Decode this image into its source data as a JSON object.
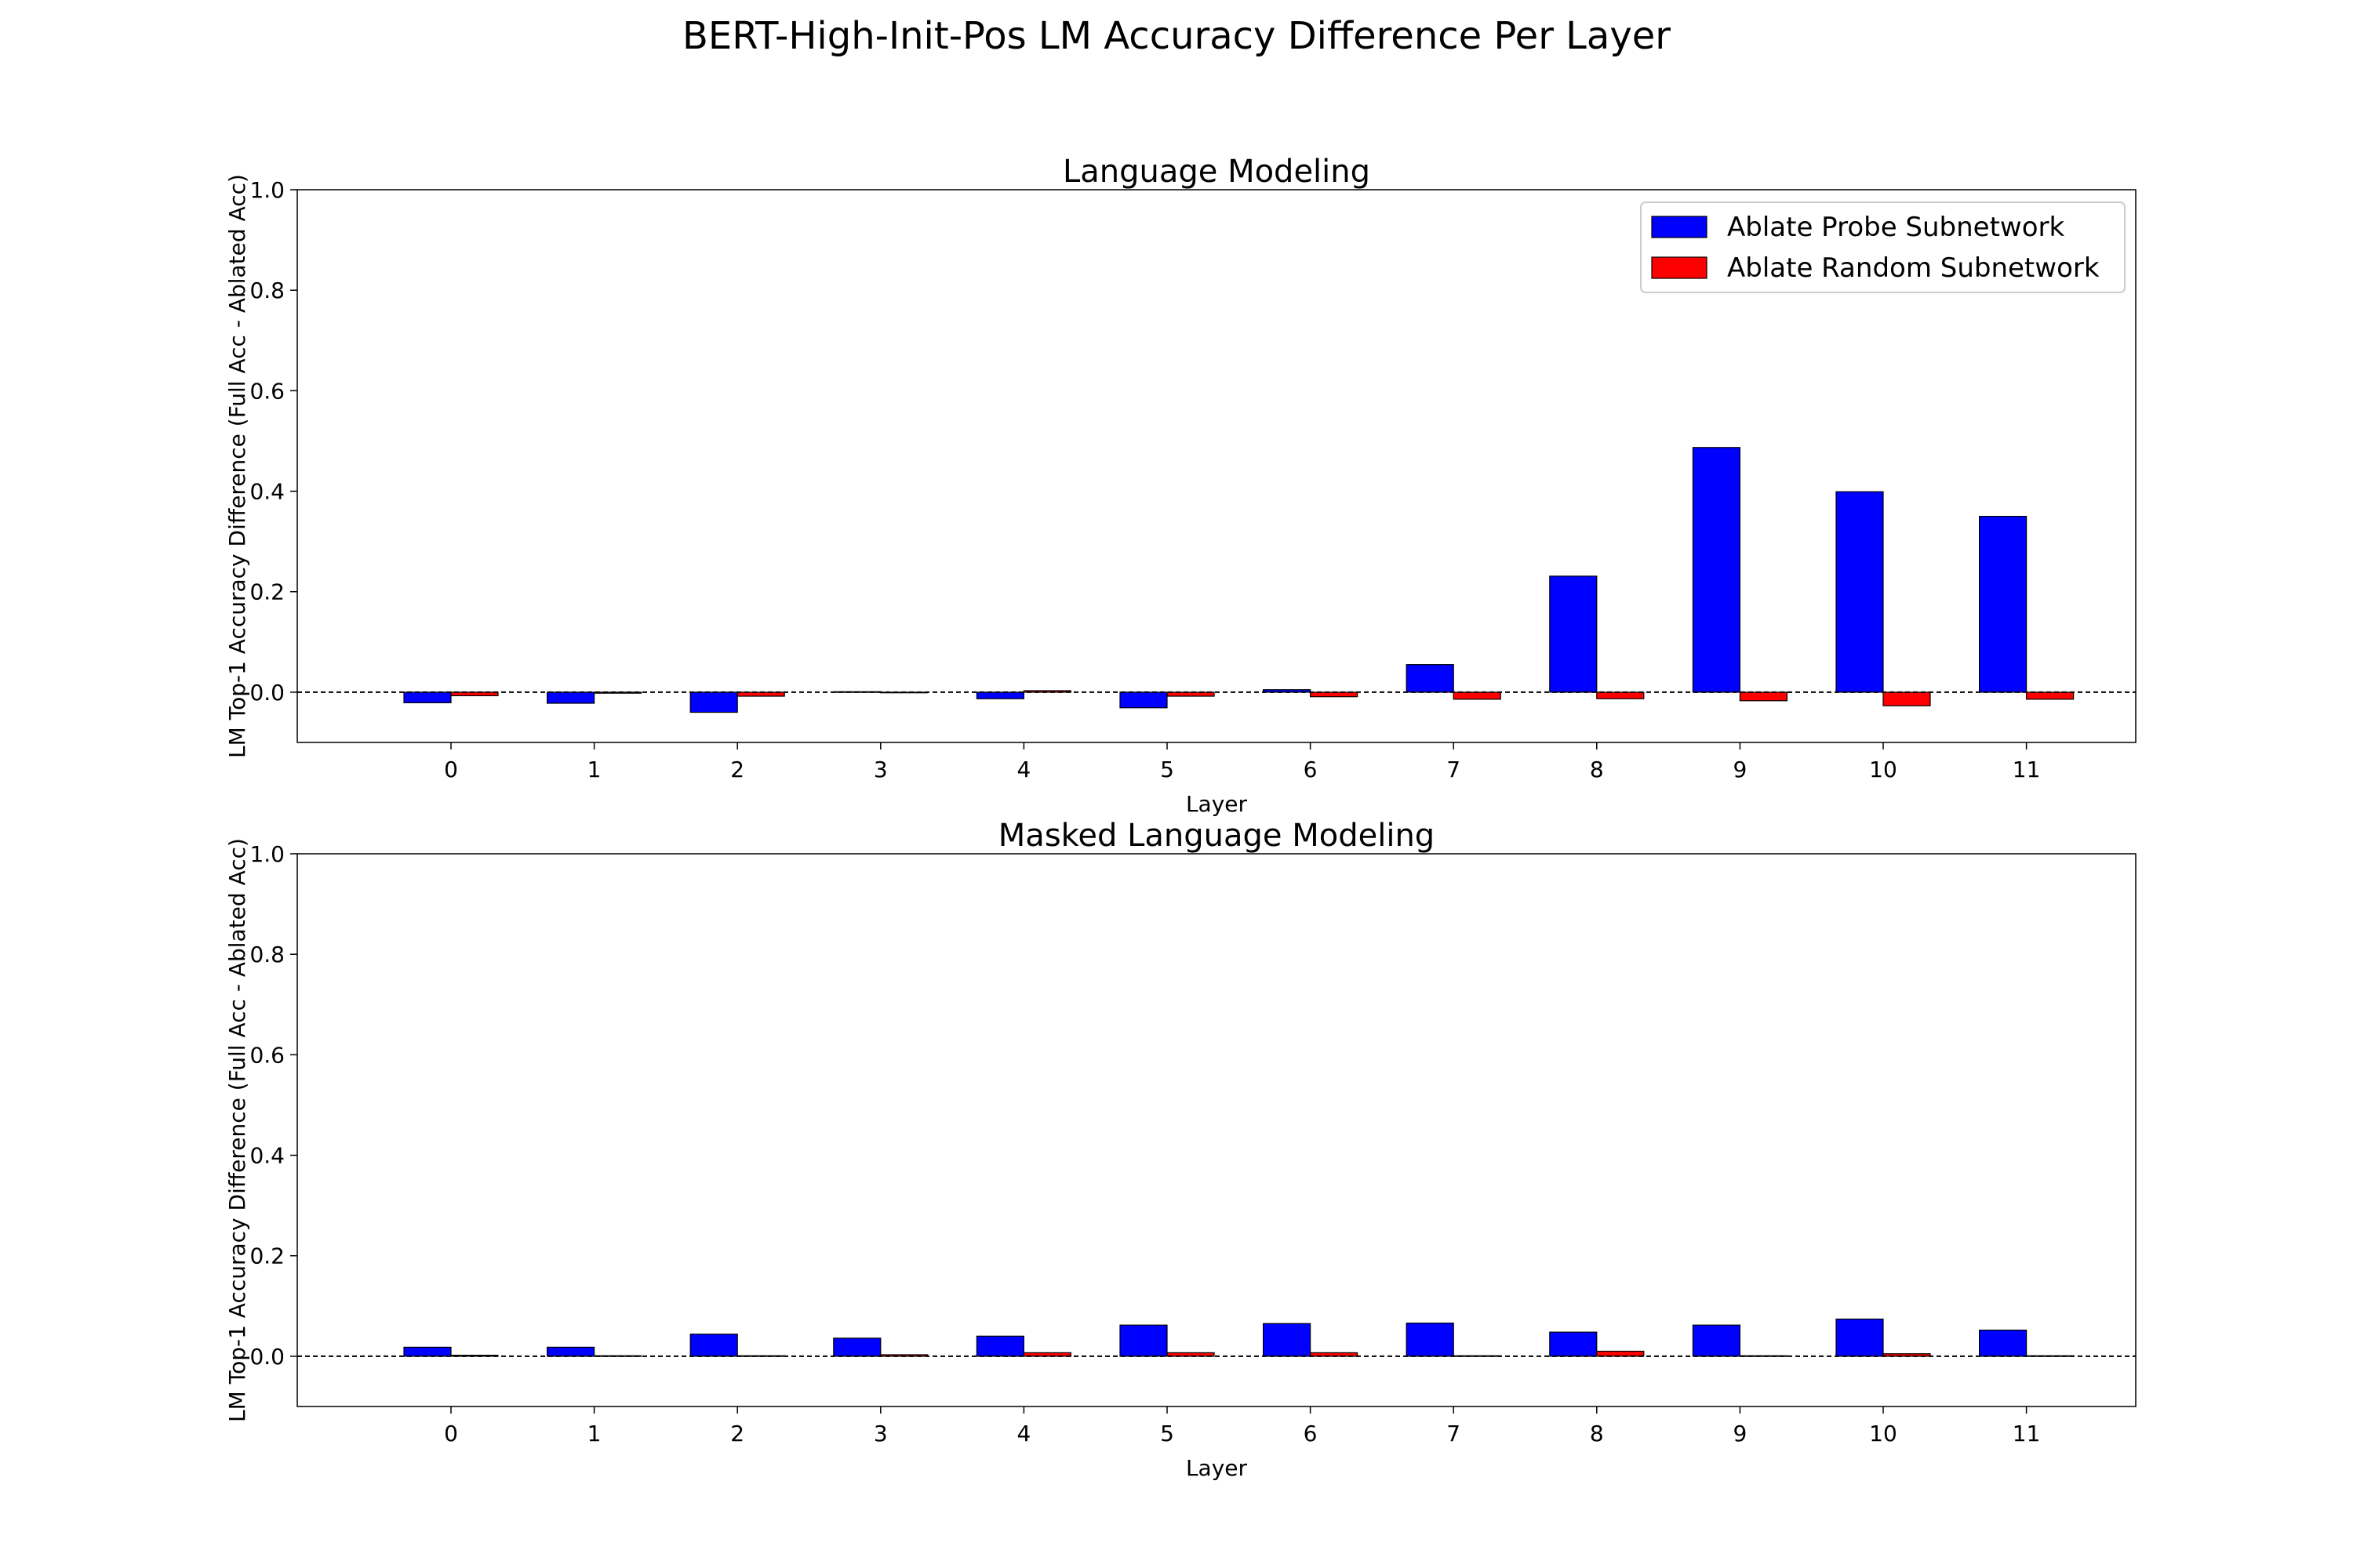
{
  "figure": {
    "suptitle": "BERT-High-Init-Pos LM Accuracy Difference Per Layer"
  },
  "colors": {
    "probe": "#0000ff",
    "random": "#ff0000",
    "edge": "#000000",
    "zero_line": "#000000"
  },
  "chart_data": [
    {
      "type": "bar",
      "title": "Language Modeling",
      "xlabel": "Layer",
      "ylabel": "LM Top-1 Accuracy Difference (Full Acc - Ablated Acc)",
      "categories": [
        "0",
        "1",
        "2",
        "3",
        "4",
        "5",
        "6",
        "7",
        "8",
        "9",
        "10",
        "11"
      ],
      "ylim": [
        -0.1,
        1.0
      ],
      "yticks": [
        "0.0",
        "0.2",
        "0.4",
        "0.6",
        "0.8",
        "1.0"
      ],
      "zero_line": "dashed",
      "grid": false,
      "legend_position": "top-right",
      "series": [
        {
          "name": "Ablate Probe Subnetwork",
          "color": "#0000ff",
          "values": [
            -0.021,
            -0.022,
            -0.04,
            0.001,
            -0.013,
            -0.031,
            0.005,
            0.055,
            0.231,
            0.487,
            0.399,
            0.35
          ]
        },
        {
          "name": "Ablate Random Subnetwork",
          "color": "#ff0000",
          "values": [
            -0.007,
            -0.002,
            -0.008,
            -0.001,
            0.003,
            -0.008,
            -0.009,
            -0.014,
            -0.013,
            -0.017,
            -0.027,
            -0.014
          ]
        }
      ]
    },
    {
      "type": "bar",
      "title": "Masked Language Modeling",
      "xlabel": "Layer",
      "ylabel": "LM Top-1 Accuracy Difference (Full Acc - Ablated Acc)",
      "categories": [
        "0",
        "1",
        "2",
        "3",
        "4",
        "5",
        "6",
        "7",
        "8",
        "9",
        "10",
        "11"
      ],
      "ylim": [
        -0.1,
        1.0
      ],
      "yticks": [
        "0.0",
        "0.2",
        "0.4",
        "0.6",
        "0.8",
        "1.0"
      ],
      "zero_line": "dashed",
      "grid": false,
      "series": [
        {
          "name": "Ablate Probe Subnetwork",
          "color": "#0000ff",
          "values": [
            0.018,
            0.018,
            0.044,
            0.036,
            0.04,
            0.062,
            0.065,
            0.066,
            0.048,
            0.062,
            0.074,
            0.052
          ]
        },
        {
          "name": "Ablate Random Subnetwork",
          "color": "#ff0000",
          "values": [
            0.002,
            0.001,
            0.001,
            0.003,
            0.007,
            0.007,
            0.007,
            0.001,
            0.01,
            0.001,
            0.005,
            0.001
          ]
        }
      ]
    }
  ]
}
